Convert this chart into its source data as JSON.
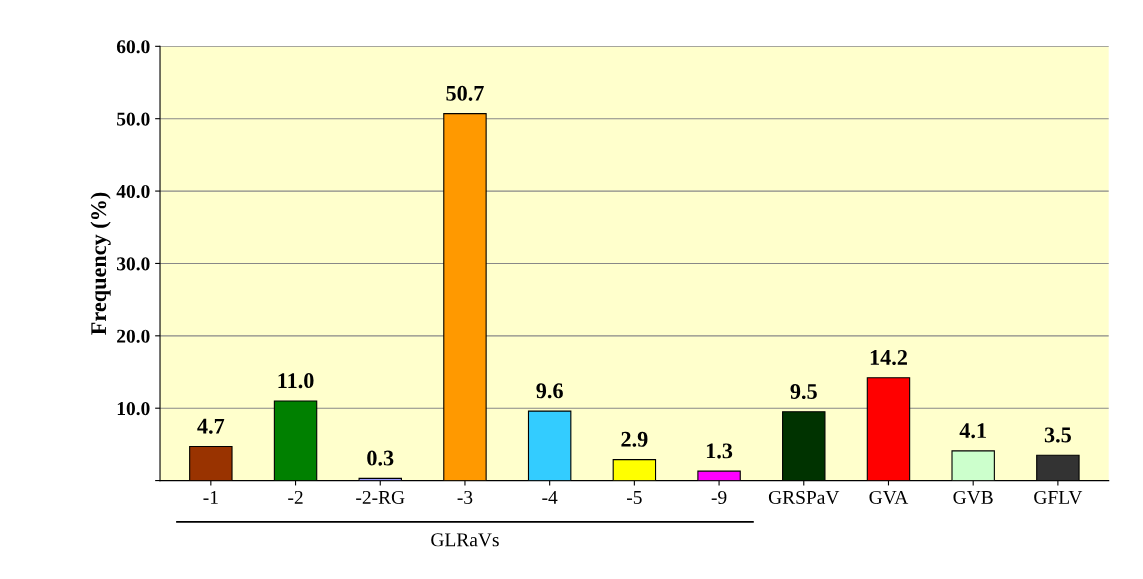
{
  "chart_data": {
    "type": "bar",
    "ylabel": "Frequency (%)",
    "categories": [
      "-1",
      "-2",
      "-2-RG",
      "-3",
      "-4",
      "-5",
      "-9",
      "GRSPaV",
      "GVA",
      "GVB",
      "GFLV"
    ],
    "values": [
      4.7,
      11.0,
      0.3,
      50.7,
      9.6,
      2.9,
      1.3,
      9.5,
      14.2,
      4.1,
      3.5
    ],
    "colors": [
      "#993300",
      "#008000",
      "#9999ff",
      "#ff9900",
      "#33ccff",
      "#ffff00",
      "#ff00ff",
      "#003300",
      "#ff0000",
      "#ccffcc",
      "#333333"
    ],
    "value_labels": [
      "4.7",
      "11.0",
      "0.3",
      "50.7",
      "9.6",
      "2.9",
      "1.3",
      "9.5",
      "14.2",
      "4.1",
      "3.5"
    ],
    "ylim": [
      0,
      60
    ],
    "yticks": [
      {
        "value": 0,
        "label": null
      },
      {
        "value": 10,
        "label": "10.0"
      },
      {
        "value": 20,
        "label": "20.0"
      },
      {
        "value": 30,
        "label": "30.0"
      },
      {
        "value": 40,
        "label": "40.0"
      },
      {
        "value": 50,
        "label": "50.0"
      },
      {
        "value": 60,
        "label": "60.0"
      }
    ],
    "grid": "y",
    "annotations": [
      "GLRaVs"
    ]
  }
}
